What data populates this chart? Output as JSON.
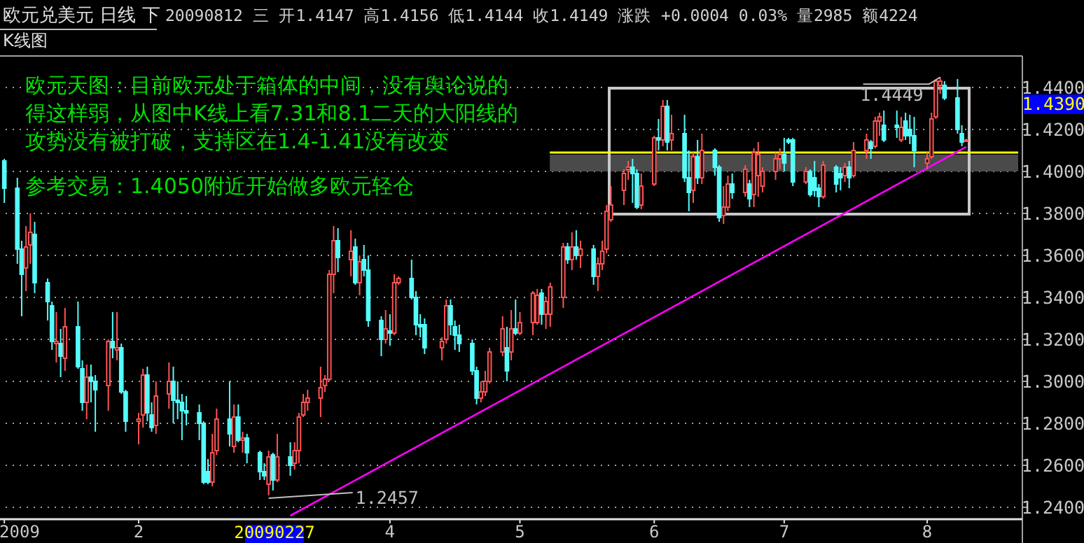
{
  "chart_data": {
    "type": "candlestick",
    "title": "欧元兑美元 日线 下",
    "subtitle": "20090812 三 开1.4147 高1.4156 低1.4144 收1.4149 涨跌 +0.0004 0.03% 量2985 额4224",
    "x": [
      "2009-01-02",
      "2009-01-05",
      "2009-01-06",
      "2009-01-07",
      "2009-01-08",
      "2009-01-09",
      "2009-01-12",
      "2009-01-13",
      "2009-01-14",
      "2009-01-15",
      "2009-01-16",
      "2009-01-19",
      "2009-01-20",
      "2009-01-21",
      "2009-01-22",
      "2009-01-23",
      "2009-01-26",
      "2009-01-27",
      "2009-01-28",
      "2009-01-29",
      "2009-01-30",
      "2009-02-02",
      "2009-02-03",
      "2009-02-04",
      "2009-02-05",
      "2009-02-06",
      "2009-02-09",
      "2009-02-10",
      "2009-02-11",
      "2009-02-12",
      "2009-02-13",
      "2009-02-16",
      "2009-02-17",
      "2009-02-18",
      "2009-02-19",
      "2009-02-20",
      "2009-02-23",
      "2009-02-24",
      "2009-02-25",
      "2009-02-26",
      "2009-02-27",
      "2009-03-02",
      "2009-03-03",
      "2009-03-04",
      "2009-03-05",
      "2009-03-06",
      "2009-03-09",
      "2009-03-10",
      "2009-03-11",
      "2009-03-12",
      "2009-03-13",
      "2009-03-16",
      "2009-03-17",
      "2009-03-18",
      "2009-03-19",
      "2009-03-20",
      "2009-03-23",
      "2009-03-24",
      "2009-03-25",
      "2009-03-26",
      "2009-03-27",
      "2009-03-30",
      "2009-03-31",
      "2009-04-01",
      "2009-04-02",
      "2009-04-03",
      "2009-04-06",
      "2009-04-07",
      "2009-04-08",
      "2009-04-09",
      "2009-04-13",
      "2009-04-14",
      "2009-04-15",
      "2009-04-16",
      "2009-04-17",
      "2009-04-20",
      "2009-04-21",
      "2009-04-22",
      "2009-04-23",
      "2009-04-24",
      "2009-04-27",
      "2009-04-28",
      "2009-04-29",
      "2009-04-30",
      "2009-05-01",
      "2009-05-04",
      "2009-05-05",
      "2009-05-06",
      "2009-05-07",
      "2009-05-08",
      "2009-05-11",
      "2009-05-12",
      "2009-05-13",
      "2009-05-14",
      "2009-05-15",
      "2009-05-18",
      "2009-05-19",
      "2009-05-20",
      "2009-05-21",
      "2009-05-22",
      "2009-05-25",
      "2009-05-26",
      "2009-05-27",
      "2009-05-28",
      "2009-05-29",
      "2009-06-01",
      "2009-06-02",
      "2009-06-03",
      "2009-06-04",
      "2009-06-05",
      "2009-06-08",
      "2009-06-09",
      "2009-06-10",
      "2009-06-11",
      "2009-06-12",
      "2009-06-15",
      "2009-06-16",
      "2009-06-17",
      "2009-06-18",
      "2009-06-19",
      "2009-06-22",
      "2009-06-23",
      "2009-06-24",
      "2009-06-25",
      "2009-06-26",
      "2009-06-29",
      "2009-06-30",
      "2009-07-01",
      "2009-07-02",
      "2009-07-03",
      "2009-07-06",
      "2009-07-07",
      "2009-07-08",
      "2009-07-09",
      "2009-07-10",
      "2009-07-13",
      "2009-07-14",
      "2009-07-15",
      "2009-07-16",
      "2009-07-17",
      "2009-07-20",
      "2009-07-21",
      "2009-07-22",
      "2009-07-23",
      "2009-07-24",
      "2009-07-27",
      "2009-07-28",
      "2009-07-29",
      "2009-07-30",
      "2009-07-31",
      "2009-08-03",
      "2009-08-04",
      "2009-08-05",
      "2009-08-06",
      "2009-08-07",
      "2009-08-10",
      "2009-08-11",
      "2009-08-12"
    ],
    "ohlc": [
      [
        1.405,
        1.406,
        1.385,
        1.392
      ],
      [
        1.392,
        1.397,
        1.356,
        1.363
      ],
      [
        1.363,
        1.367,
        1.331,
        1.351
      ],
      [
        1.354,
        1.374,
        1.343,
        1.364
      ],
      [
        1.365,
        1.38,
        1.356,
        1.371
      ],
      [
        1.37,
        1.376,
        1.342,
        1.347
      ],
      [
        1.347,
        1.349,
        1.329,
        1.338
      ],
      [
        1.336,
        1.338,
        1.315,
        1.319
      ],
      [
        1.318,
        1.333,
        1.309,
        1.319
      ],
      [
        1.318,
        1.325,
        1.302,
        1.312
      ],
      [
        1.311,
        1.335,
        1.305,
        1.326
      ],
      [
        1.326,
        1.338,
        1.306,
        1.307
      ],
      [
        1.306,
        1.31,
        1.286,
        1.29
      ],
      [
        1.29,
        1.308,
        1.282,
        1.302
      ],
      [
        1.302,
        1.308,
        1.29,
        1.3
      ],
      [
        1.3,
        1.303,
        1.276,
        1.296
      ],
      [
        1.298,
        1.32,
        1.286,
        1.319
      ],
      [
        1.319,
        1.333,
        1.311,
        1.316
      ],
      [
        1.315,
        1.333,
        1.31,
        1.316
      ],
      [
        1.316,
        1.318,
        1.294,
        1.295
      ],
      [
        1.295,
        1.296,
        1.276,
        1.281
      ],
      [
        1.281,
        1.285,
        1.27,
        1.282
      ],
      [
        1.284,
        1.306,
        1.278,
        1.303
      ],
      [
        1.303,
        1.307,
        1.281,
        1.285
      ],
      [
        1.284,
        1.29,
        1.276,
        1.278
      ],
      [
        1.279,
        1.3,
        1.275,
        1.293
      ],
      [
        1.294,
        1.309,
        1.287,
        1.3
      ],
      [
        1.3,
        1.307,
        1.28,
        1.291
      ],
      [
        1.291,
        1.3,
        1.282,
        1.29
      ],
      [
        1.29,
        1.294,
        1.272,
        1.286
      ],
      [
        1.286,
        1.293,
        1.279,
        1.285
      ],
      [
        1.285,
        1.289,
        1.272,
        1.28
      ],
      [
        1.28,
        1.281,
        1.251,
        1.252
      ],
      [
        1.257,
        1.263,
        1.251,
        1.252
      ],
      [
        1.252,
        1.275,
        1.25,
        1.266
      ],
      [
        1.267,
        1.287,
        1.265,
        1.282
      ],
      [
        1.282,
        1.3,
        1.269,
        1.275
      ],
      [
        1.269,
        1.289,
        1.266,
        1.283
      ],
      [
        1.283,
        1.289,
        1.271,
        1.272
      ],
      [
        1.272,
        1.276,
        1.266,
        1.273
      ],
      [
        1.273,
        1.275,
        1.261,
        1.266
      ],
      [
        1.266,
        1.267,
        1.253,
        1.257
      ],
      [
        1.257,
        1.261,
        1.253,
        1.255
      ],
      [
        1.251,
        1.267,
        1.2457,
        1.264
      ],
      [
        1.265,
        1.266,
        1.248,
        1.253
      ],
      [
        1.253,
        1.275,
        1.252,
        1.264
      ],
      [
        1.264,
        1.271,
        1.255,
        1.26
      ],
      [
        1.261,
        1.271,
        1.258,
        1.267
      ],
      [
        1.267,
        1.285,
        1.261,
        1.283
      ],
      [
        1.284,
        1.294,
        1.283,
        1.29
      ],
      [
        1.29,
        1.296,
        1.286,
        1.292
      ],
      [
        1.292,
        1.307,
        1.283,
        1.297
      ],
      [
        1.298,
        1.303,
        1.295,
        1.301
      ],
      [
        1.301,
        1.353,
        1.3,
        1.351
      ],
      [
        1.351,
        1.374,
        1.342,
        1.367
      ],
      [
        1.367,
        1.373,
        1.352,
        1.359
      ],
      [
        1.358,
        1.372,
        1.35,
        1.362
      ],
      [
        1.364,
        1.368,
        1.346,
        1.347
      ],
      [
        1.347,
        1.36,
        1.341,
        1.357
      ],
      [
        1.358,
        1.365,
        1.35,
        1.353
      ],
      [
        1.353,
        1.36,
        1.326,
        1.329
      ],
      [
        1.329,
        1.331,
        1.312,
        1.32
      ],
      [
        1.32,
        1.334,
        1.318,
        1.325
      ],
      [
        1.324,
        1.332,
        1.317,
        1.323
      ],
      [
        1.323,
        1.351,
        1.322,
        1.347
      ],
      [
        1.347,
        1.35,
        1.346,
        1.349
      ],
      [
        1.349,
        1.358,
        1.339,
        1.34
      ],
      [
        1.34,
        1.343,
        1.322,
        1.327
      ],
      [
        1.327,
        1.332,
        1.321,
        1.326
      ],
      [
        1.327,
        1.33,
        1.313,
        1.316
      ],
      [
        1.316,
        1.321,
        1.31,
        1.319
      ],
      [
        1.32,
        1.339,
        1.318,
        1.336
      ],
      [
        1.336,
        1.339,
        1.322,
        1.327
      ],
      [
        1.326,
        1.329,
        1.315,
        1.322
      ],
      [
        1.322,
        1.327,
        1.314,
        1.318
      ],
      [
        1.318,
        1.32,
        1.303,
        1.305
      ],
      [
        1.305,
        1.307,
        1.289,
        1.292
      ],
      [
        1.292,
        1.3,
        1.29,
        1.295
      ],
      [
        1.295,
        1.305,
        1.293,
        1.3
      ],
      [
        1.3,
        1.316,
        1.299,
        1.314
      ],
      [
        1.314,
        1.331,
        1.312,
        1.325
      ],
      [
        1.316,
        1.326,
        1.3,
        1.305
      ],
      [
        1.314,
        1.334,
        1.31,
        1.325
      ],
      [
        1.325,
        1.339,
        1.322,
        1.323
      ],
      [
        1.323,
        1.333,
        1.322,
        1.328
      ],
      [
        1.328,
        1.343,
        1.322,
        1.342
      ],
      [
        1.328,
        1.344,
        1.327,
        1.341
      ],
      [
        1.342,
        1.344,
        1.327,
        1.332
      ],
      [
        1.332,
        1.34,
        1.325,
        1.338
      ],
      [
        1.332,
        1.347,
        1.326,
        1.345
      ],
      [
        1.34,
        1.366,
        1.335,
        1.364
      ],
      [
        1.364,
        1.366,
        1.356,
        1.358
      ],
      [
        1.358,
        1.371,
        1.353,
        1.364
      ],
      [
        1.364,
        1.372,
        1.358,
        1.36
      ],
      [
        1.36,
        1.367,
        1.354,
        1.363
      ],
      [
        1.363,
        1.365,
        1.346,
        1.35
      ],
      [
        1.35,
        1.359,
        1.343,
        1.356
      ],
      [
        1.356,
        1.367,
        1.353,
        1.362
      ],
      [
        1.363,
        1.384,
        1.361,
        1.381
      ],
      [
        1.377,
        1.393,
        1.376,
        1.384
      ],
      [
        1.391,
        1.401,
        1.384,
        1.399
      ],
      [
        1.401,
        1.405,
        1.396,
        1.402
      ],
      [
        1.402,
        1.406,
        1.385,
        1.399
      ],
      [
        1.399,
        1.401,
        1.382,
        1.383
      ],
      [
        1.384,
        1.399,
        1.382,
        1.393
      ],
      [
        1.394,
        1.417,
        1.393,
        1.416
      ],
      [
        1.416,
        1.425,
        1.41,
        1.415
      ],
      [
        1.415,
        1.434,
        1.412,
        1.431
      ],
      [
        1.431,
        1.434,
        1.41,
        1.414
      ],
      [
        1.415,
        1.427,
        1.41,
        1.418
      ],
      [
        1.418,
        1.427,
        1.395,
        1.397
      ],
      [
        1.397,
        1.41,
        1.381,
        1.39
      ],
      [
        1.391,
        1.409,
        1.385,
        1.407
      ],
      [
        1.407,
        1.415,
        1.394,
        1.397
      ],
      [
        1.397,
        1.418,
        1.394,
        1.41
      ],
      [
        1.41,
        1.411,
        1.398,
        1.402
      ],
      [
        1.402,
        1.403,
        1.376,
        1.378
      ],
      [
        1.379,
        1.393,
        1.375,
        1.383
      ],
      [
        1.383,
        1.398,
        1.381,
        1.394
      ],
      [
        1.394,
        1.399,
        1.387,
        1.39
      ],
      [
        1.39,
        1.403,
        1.388,
        1.401
      ],
      [
        1.394,
        1.396,
        1.383,
        1.387
      ],
      [
        1.389,
        1.411,
        1.383,
        1.409
      ],
      [
        1.398,
        1.414,
        1.388,
        1.408
      ],
      [
        1.393,
        1.402,
        1.39,
        1.4
      ],
      [
        1.4,
        1.409,
        1.396,
        1.406
      ],
      [
        1.406,
        1.411,
        1.401,
        1.408
      ],
      [
        1.408,
        1.416,
        1.4,
        1.404
      ],
      [
        1.415,
        1.416,
        1.413,
        1.414
      ],
      [
        1.415,
        1.416,
        1.393,
        1.395
      ],
      [
        1.395,
        1.402,
        1.394,
        1.4
      ],
      [
        1.4,
        1.401,
        1.388,
        1.389
      ],
      [
        1.397,
        1.405,
        1.388,
        1.391
      ],
      [
        1.392,
        1.394,
        1.383,
        1.388
      ],
      [
        1.388,
        1.405,
        1.387,
        1.403
      ],
      [
        1.402,
        1.403,
        1.39,
        1.394
      ],
      [
        1.399,
        1.402,
        1.391,
        1.397
      ],
      [
        1.398,
        1.404,
        1.395,
        1.402
      ],
      [
        1.402,
        1.405,
        1.392,
        1.397
      ],
      [
        1.398,
        1.414,
        1.397,
        1.41
      ],
      [
        1.41,
        1.418,
        1.406,
        1.415
      ],
      [
        1.414,
        1.415,
        1.406,
        1.411
      ],
      [
        1.412,
        1.426,
        1.411,
        1.424
      ],
      [
        1.424,
        1.428,
        1.417,
        1.426
      ],
      [
        1.422,
        1.429,
        1.414,
        1.415
      ],
      [
        1.422,
        1.429,
        1.416,
        1.421
      ],
      [
        1.415,
        1.426,
        1.414,
        1.421
      ],
      [
        1.424,
        1.428,
        1.415,
        1.417
      ],
      [
        1.42,
        1.427,
        1.413,
        1.417
      ],
      [
        1.417,
        1.426,
        1.402,
        1.41
      ],
      [
        1.404,
        1.409,
        1.401,
        1.406
      ],
      [
        1.407,
        1.428,
        1.406,
        1.425
      ],
      [
        1.426,
        1.444,
        1.425,
        1.443
      ],
      [
        1.441,
        1.4449,
        1.437,
        1.443
      ],
      [
        1.441,
        1.443,
        1.434,
        1.435
      ],
      [
        1.435,
        1.444,
        1.418,
        1.42
      ],
      [
        1.418,
        1.422,
        1.412,
        1.414
      ],
      [
        1.4147,
        1.4156,
        1.4144,
        1.4149
      ]
    ],
    "series": [
      {
        "type": "line",
        "color": "#ff00ff",
        "x": [
          "2009-03-09",
          "2009-08-12"
        ],
        "values": [
          1.236,
          1.4117
        ]
      }
    ],
    "xlim": [
      "2009-01-01",
      "2009-08-24"
    ],
    "ylim": [
      1.235,
      1.455
    ],
    "yticks": [
      {
        "value": 1.24,
        "label": "1.2400"
      },
      {
        "value": 1.26,
        "label": "1.2600"
      },
      {
        "value": 1.28,
        "label": "1.2800"
      },
      {
        "value": 1.3,
        "label": "1.3000"
      },
      {
        "value": 1.32,
        "label": "1.3200"
      },
      {
        "value": 1.34,
        "label": "1.3400"
      },
      {
        "value": 1.36,
        "label": "1.3600"
      },
      {
        "value": 1.38,
        "label": "1.3800"
      },
      {
        "value": 1.4,
        "label": "1.4000"
      },
      {
        "value": 1.42,
        "label": "1.4200"
      },
      {
        "value": 1.44,
        "label": "1.4400"
      }
    ],
    "xticks": [
      {
        "value": "2009-01-02",
        "label": "2009"
      },
      {
        "value": "2009-02-02",
        "label": "2"
      },
      {
        "value": "2009-04-01",
        "label": "4"
      },
      {
        "value": "2009-05-01",
        "label": "5"
      },
      {
        "value": "2009-06-01",
        "label": "6"
      },
      {
        "value": "2009-07-01",
        "label": "7"
      },
      {
        "value": "2009-08-03",
        "label": "8"
      }
    ],
    "grid": "y",
    "ref_lines": [
      {
        "axis": "y",
        "value": 1.409,
        "color": "#ffff00"
      }
    ],
    "bands": [
      {
        "axis": "y",
        "from": 1.4,
        "to": 1.408,
        "color": "#4a4a4a"
      }
    ],
    "annotations": [
      "K线图",
      "欧元天图：目前欧元处于箱体的中间，没有舆论说的",
      "得这样弱，从图中K线上看7.31和8.1二天的大阳线的",
      "攻势没有被打破，支持区在1.4-1.41没有改变",
      "参考交易：1.4050附近开始做多欧元轻仓",
      {
        "text": "1.4449",
        "x": "2009-08-06",
        "y": 1.4449
      },
      {
        "text": "1.2457",
        "x": "2009-03-04",
        "y": 1.2457
      },
      "1.4390",
      "20090227"
    ]
  }
}
